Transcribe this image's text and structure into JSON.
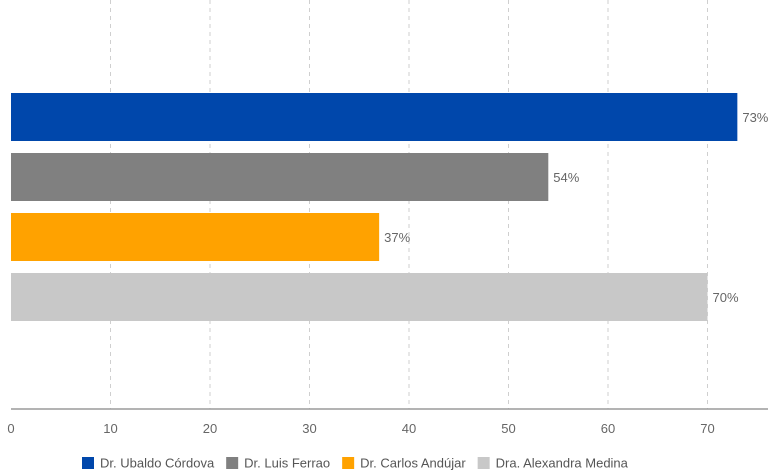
{
  "chart_data": {
    "type": "bar",
    "orientation": "horizontal",
    "title": "",
    "xlabel": "",
    "ylabel": "",
    "xlim": [
      0,
      73
    ],
    "x_ticks": [
      0,
      10,
      20,
      30,
      40,
      50,
      60,
      70
    ],
    "grid": true,
    "legend_position": "bottom",
    "series": [
      {
        "name": "Dr. Ubaldo Córdova",
        "value": 73,
        "label": "73%",
        "color": "#0047ab"
      },
      {
        "name": "Dr. Luis Ferrao",
        "value": 54,
        "label": "54%",
        "color": "#808080"
      },
      {
        "name": "Dr. Carlos Andújar",
        "value": 37,
        "label": "37%",
        "color": "#ffa200"
      },
      {
        "name": "Dra. Alexandra Medina",
        "value": 70,
        "label": "70%",
        "color": "#c8c8c8"
      }
    ]
  }
}
